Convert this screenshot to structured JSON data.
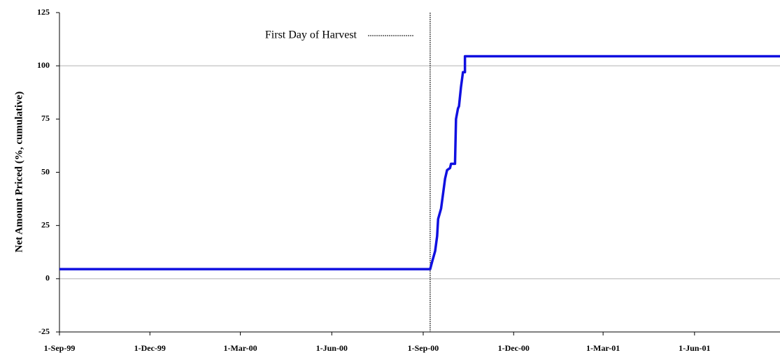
{
  "chart_data": {
    "type": "line",
    "y_label": "Net Amount Priced (%, cumulative)",
    "ylim": [
      -25,
      125
    ],
    "yticks": [
      -25,
      0,
      25,
      50,
      75,
      100,
      125
    ],
    "grid_values": [
      0,
      100
    ],
    "xlim": [
      "1999-09-01",
      "2001-08-26"
    ],
    "xticks": [
      {
        "value": "1999-09-01",
        "label": "1-Sep-99"
      },
      {
        "value": "1999-12-01",
        "label": "1-Dec-99"
      },
      {
        "value": "2000-03-01",
        "label": "1-Mar-00"
      },
      {
        "value": "2000-06-01",
        "label": "1-Jun-00"
      },
      {
        "value": "2000-09-01",
        "label": "1-Sep-00"
      },
      {
        "value": "2000-12-01",
        "label": "1-Dec-00"
      },
      {
        "value": "2001-03-01",
        "label": "1-Mar-01"
      },
      {
        "value": "2001-06-01",
        "label": "1-Jun-01"
      }
    ],
    "vline": {
      "x": "2000-09-08",
      "label": "First Day of Harvest",
      "color": "#000000"
    },
    "series": [
      {
        "color": "#1010e0",
        "x": [
          "1999-09-01",
          "2000-09-08",
          "2000-09-10",
          "2000-09-13",
          "2000-09-15",
          "2000-09-16",
          "2000-09-19",
          "2000-09-21",
          "2000-09-23",
          "2000-09-25",
          "2000-09-28",
          "2000-09-29",
          "2000-10-03",
          "2000-10-04",
          "2000-10-06",
          "2000-10-07",
          "2000-10-09",
          "2000-10-11",
          "2000-10-13",
          "2000-10-13",
          "2001-08-26"
        ],
        "values": [
          4.5,
          4.5,
          8,
          13,
          20,
          28,
          33,
          40,
          47,
          51,
          52,
          54,
          54,
          75,
          80,
          81,
          90,
          97,
          97,
          104.5,
          104.5
        ]
      }
    ]
  }
}
